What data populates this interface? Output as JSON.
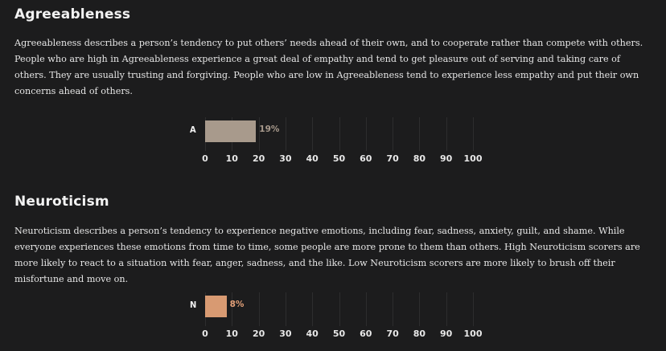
{
  "sections": [
    {
      "title": "Agreeableness",
      "description": "Agreeableness describes a person’s tendency to put others’ needs ahead of their own, and to cooperate rather than compete with others. People who are high in Agreeableness experience a great deal of empathy and tend to get pleasure out of serving and taking care of others. They are usually trusting and forgiving. People who are low in Agreeableness tend to experience less empathy and put their own concerns ahead of others.",
      "chart": {
        "label": "A",
        "value": 19,
        "value_label": "19%",
        "bar_color": "#a89a8c",
        "value_color": "#a89a8c"
      }
    },
    {
      "title": "Neuroticism",
      "description": "Neuroticism describes a person’s tendency to experience negative emotions, including fear, sadness, anxiety, guilt, and shame. While everyone experiences these emotions from time to time, some people are more prone to them than others. High Neuroticism scorers are more likely to react to a situation with fear, anger, sadness, and the like. Low Neuroticism scorers are more likely to brush off their misfortune and move on.",
      "chart": {
        "label": "N",
        "value": 8,
        "value_label": "8%",
        "bar_color": "#d89a72",
        "value_color": "#e3a078"
      }
    }
  ],
  "axis_ticks": [
    "0",
    "10",
    "20",
    "30",
    "40",
    "50",
    "60",
    "70",
    "80",
    "90",
    "100"
  ],
  "chart_data": [
    {
      "type": "bar",
      "categories": [
        "A"
      ],
      "values": [
        19
      ],
      "xlim": [
        0,
        100
      ]
    },
    {
      "type": "bar",
      "categories": [
        "N"
      ],
      "values": [
        8
      ],
      "xlim": [
        0,
        100
      ]
    }
  ]
}
